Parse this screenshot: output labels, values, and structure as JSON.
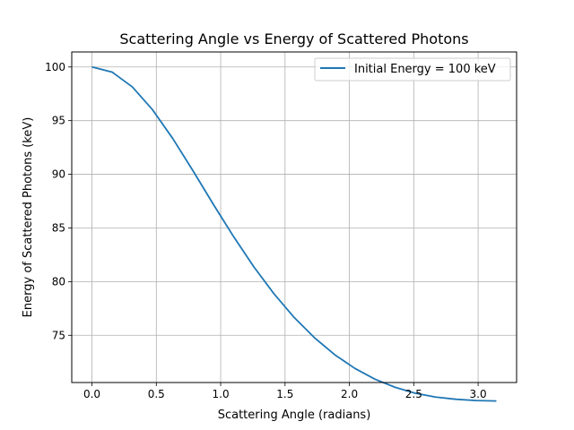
{
  "chart_data": {
    "type": "line",
    "title": "Scattering Angle vs Energy of Scattered Photons",
    "xlabel": "Scattering Angle (radians)",
    "ylabel": "Energy of Scattered Photons (keV)",
    "xlim": [
      -0.157,
      3.299
    ],
    "ylim": [
      70.6,
      101.4
    ],
    "xticks": [
      "0.0",
      "0.5",
      "1.0",
      "1.5",
      "2.0",
      "2.5",
      "3.0"
    ],
    "xtick_values": [
      0.0,
      0.5,
      1.0,
      1.5,
      2.0,
      2.5,
      3.0
    ],
    "yticks": [
      "75",
      "80",
      "85",
      "90",
      "95",
      "100"
    ],
    "ytick_values": [
      75,
      80,
      85,
      90,
      95,
      100
    ],
    "grid": true,
    "legend_position": "top-right",
    "series": [
      {
        "name": "Initial Energy = 100 keV",
        "color": "#1f77b4",
        "x": [
          0.0,
          0.157,
          0.314,
          0.471,
          0.628,
          0.785,
          0.942,
          1.1,
          1.257,
          1.414,
          1.571,
          1.728,
          1.885,
          2.042,
          2.199,
          2.356,
          2.513,
          2.67,
          2.827,
          2.985,
          3.142
        ],
        "y": [
          100.0,
          99.52,
          98.14,
          96.01,
          93.33,
          90.33,
          87.22,
          84.2,
          81.39,
          78.87,
          76.66,
          74.78,
          73.2,
          71.92,
          70.91,
          70.15,
          69.6,
          69.24,
          69.04,
          68.92,
          68.88
        ]
      }
    ]
  }
}
